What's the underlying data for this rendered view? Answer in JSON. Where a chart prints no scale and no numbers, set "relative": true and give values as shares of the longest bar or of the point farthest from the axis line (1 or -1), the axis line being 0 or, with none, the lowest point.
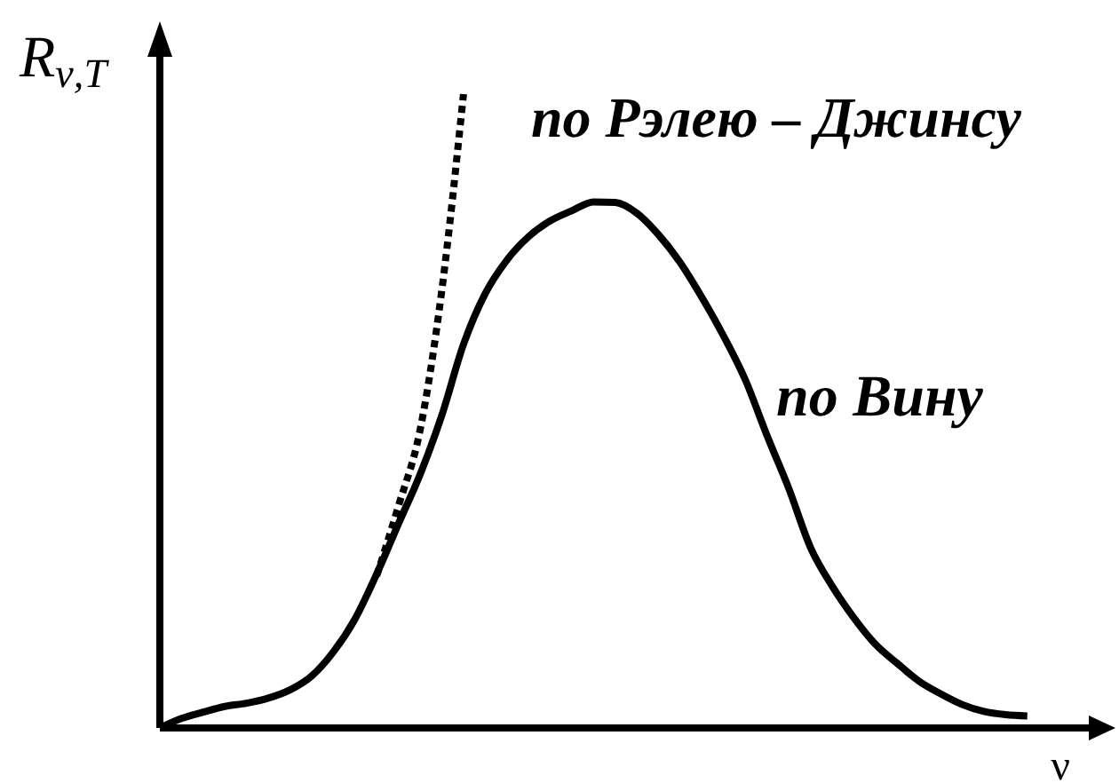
{
  "chart_data": {
    "type": "line",
    "xlabel": "ν",
    "ylabel": "R$_{ν,T}$",
    "relative": true,
    "marker": "none",
    "categories": [
      null,
      null,
      null,
      null,
      null,
      null,
      null,
      null,
      null,
      null,
      null,
      null,
      null,
      null,
      null,
      null,
      null,
      null,
      null,
      null,
      null,
      null,
      null,
      null,
      null,
      null,
      null,
      null,
      null,
      null,
      null,
      null,
      null,
      null,
      null,
      null,
      null,
      null,
      null,
      null,
      null,
      null,
      null,
      null
    ],
    "series": [
      {
        "name": "по Вину",
        "color": "#000000",
        "line_style": "solid",
        "values": [
          0,
          0.015,
          0.025,
          0.034,
          0.039,
          0.047,
          0.06,
          0.082,
          0.12,
          0.172,
          0.243,
          0.322,
          0.4,
          0.493,
          0.605,
          0.685,
          0.738,
          0.775,
          0.8,
          0.816,
          0.83,
          0.829,
          0.812,
          0.778,
          0.734,
          0.679,
          0.618,
          0.549,
          0.461,
          0.378,
          0.285,
          0.224,
          0.174,
          0.132,
          0.102,
          0.074,
          0.054,
          0.037,
          0.026,
          0.021,
          0.019,
          null,
          null,
          null
        ]
      },
      {
        "name": "по Рэлею – Джинсу",
        "color": "#000000",
        "line_style": "dotted",
        "values": [
          null,
          null,
          null,
          null,
          null,
          null,
          null,
          null,
          null,
          null,
          0.24,
          0.35,
          0.47,
          0.69,
          1,
          null,
          null,
          null,
          null,
          null,
          null,
          null,
          null,
          null,
          null,
          null,
          null,
          null,
          null,
          null,
          null,
          null,
          null,
          null,
          null,
          null,
          null,
          null,
          null,
          null,
          null,
          null,
          null,
          null
        ]
      }
    ]
  }
}
